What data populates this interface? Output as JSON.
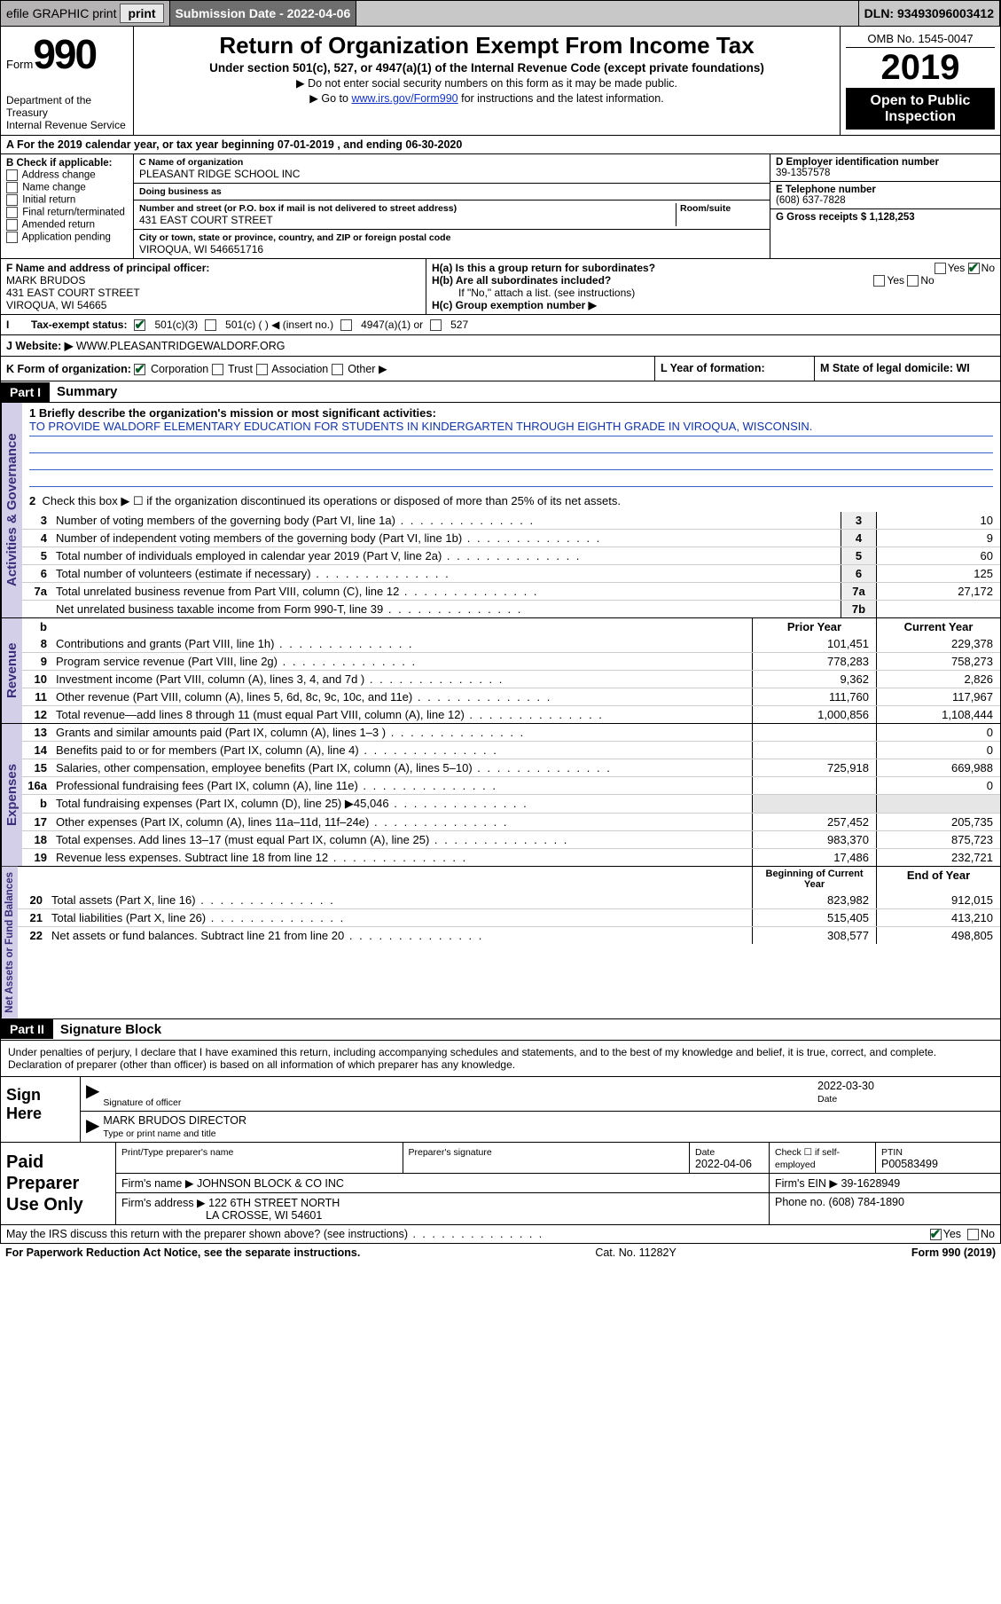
{
  "topbar": {
    "efile": "efile GRAPHIC print",
    "submission_label": "Submission Date - 2022-04-06",
    "dln": "DLN: 93493096003412"
  },
  "header": {
    "form_word": "Form",
    "form_num": "990",
    "title": "Return of Organization Exempt From Income Tax",
    "subtitle": "Under section 501(c), 527, or 4947(a)(1) of the Internal Revenue Code (except private foundations)",
    "note1": "Do not enter social security numbers on this form as it may be made public.",
    "note2_pre": "Go to ",
    "note2_link": "www.irs.gov/Form990",
    "note2_post": " for instructions and the latest information.",
    "omb": "OMB No. 1545-0047",
    "year": "2019",
    "public1": "Open to Public",
    "public2": "Inspection",
    "dept1": "Department of the Treasury",
    "dept2": "Internal Revenue Service"
  },
  "lineA": "A   For the 2019 calendar year, or tax year beginning 07-01-2019   , and ending 06-30-2020",
  "B": {
    "label": "B Check if applicable:",
    "opts": [
      "Address change",
      "Name change",
      "Initial return",
      "Final return/terminated",
      "Amended return",
      "Application pending"
    ]
  },
  "C": {
    "name_hint": "C Name of organization",
    "name": "PLEASANT RIDGE SCHOOL INC",
    "dba_hint": "Doing business as",
    "dba": "",
    "addr_hint": "Number and street (or P.O. box if mail is not delivered to street address)",
    "room_hint": "Room/suite",
    "addr": "431 EAST COURT STREET",
    "city_hint": "City or town, state or province, country, and ZIP or foreign postal code",
    "city": "VIROQUA, WI  546651716"
  },
  "D": {
    "hint": "D Employer identification number",
    "val": "39-1357578"
  },
  "E": {
    "hint": "E Telephone number",
    "val": "(608) 637-7828"
  },
  "G": {
    "label": "G Gross receipts $ 1,128,253"
  },
  "F": {
    "hint": "F  Name and address of principal officer:",
    "name": "MARK BRUDOS",
    "addr": "431 EAST COURT STREET",
    "city": "VIROQUA, WI  54665"
  },
  "H": {
    "a": "H(a)  Is this a group return for subordinates?",
    "b": "H(b)  Are all subordinates included?",
    "b_note": "If \"No,\" attach a list. (see instructions)",
    "c": "H(c)  Group exemption number ▶",
    "yes": "Yes",
    "no": "No"
  },
  "I": {
    "label": "Tax-exempt status:",
    "o1": "501(c)(3)",
    "o2": "501(c) (   ) ◀ (insert no.)",
    "o3": "4947(a)(1) or",
    "o4": "527"
  },
  "J": {
    "label": "J    Website: ▶",
    "val": "WWW.PLEASANTRIDGEWALDORF.ORG"
  },
  "K": {
    "label": "K Form of organization:",
    "opts": [
      "Corporation",
      "Trust",
      "Association",
      "Other ▶"
    ],
    "L": "L Year of formation:",
    "M": "M State of legal domicile: WI"
  },
  "partI": {
    "tag": "Part I",
    "title": "Summary",
    "vtab": "Activities & Governance"
  },
  "summary": {
    "l1_label": "1   Briefly describe the organization's mission or most significant activities:",
    "l1_text": "TO PROVIDE WALDORF ELEMENTARY EDUCATION FOR STUDENTS IN KINDERGARTEN THROUGH EIGHTH GRADE IN VIROQUA, WISCONSIN.",
    "l2": "Check this box ▶ ☐  if the organization discontinued its operations or disposed of more than 25% of its net assets.",
    "rows": [
      {
        "n": "3",
        "t": "Number of voting members of the governing body (Part VI, line 1a)",
        "b": "3",
        "v": "10"
      },
      {
        "n": "4",
        "t": "Number of independent voting members of the governing body (Part VI, line 1b)",
        "b": "4",
        "v": "9"
      },
      {
        "n": "5",
        "t": "Total number of individuals employed in calendar year 2019 (Part V, line 2a)",
        "b": "5",
        "v": "60"
      },
      {
        "n": "6",
        "t": "Total number of volunteers (estimate if necessary)",
        "b": "6",
        "v": "125"
      },
      {
        "n": "7a",
        "t": "Total unrelated business revenue from Part VIII, column (C), line 12",
        "b": "7a",
        "v": "27,172"
      },
      {
        "n": "",
        "t": "Net unrelated business taxable income from Form 990-T, line 39",
        "b": "7b",
        "v": ""
      }
    ]
  },
  "revenue": {
    "vtab": "Revenue",
    "hdr_b": "b",
    "hdr_prior": "Prior Year",
    "hdr_current": "Current Year",
    "rows": [
      {
        "n": "8",
        "t": "Contributions and grants (Part VIII, line 1h)",
        "p": "101,451",
        "c": "229,378"
      },
      {
        "n": "9",
        "t": "Program service revenue (Part VIII, line 2g)",
        "p": "778,283",
        "c": "758,273"
      },
      {
        "n": "10",
        "t": "Investment income (Part VIII, column (A), lines 3, 4, and 7d )",
        "p": "9,362",
        "c": "2,826"
      },
      {
        "n": "11",
        "t": "Other revenue (Part VIII, column (A), lines 5, 6d, 8c, 9c, 10c, and 11e)",
        "p": "111,760",
        "c": "117,967"
      },
      {
        "n": "12",
        "t": "Total revenue—add lines 8 through 11 (must equal Part VIII, column (A), line 12)",
        "p": "1,000,856",
        "c": "1,108,444"
      }
    ]
  },
  "expenses": {
    "vtab": "Expenses",
    "rows": [
      {
        "n": "13",
        "t": "Grants and similar amounts paid (Part IX, column (A), lines 1–3 )",
        "p": "",
        "c": "0"
      },
      {
        "n": "14",
        "t": "Benefits paid to or for members (Part IX, column (A), line 4)",
        "p": "",
        "c": "0"
      },
      {
        "n": "15",
        "t": "Salaries, other compensation, employee benefits (Part IX, column (A), lines 5–10)",
        "p": "725,918",
        "c": "669,988"
      },
      {
        "n": "16a",
        "t": "Professional fundraising fees (Part IX, column (A), line 11e)",
        "p": "",
        "c": "0"
      },
      {
        "n": "b",
        "t": "Total fundraising expenses (Part IX, column (D), line 25) ▶45,046",
        "p": "",
        "c": "",
        "shade": true
      },
      {
        "n": "17",
        "t": "Other expenses (Part IX, column (A), lines 11a–11d, 11f–24e)",
        "p": "257,452",
        "c": "205,735"
      },
      {
        "n": "18",
        "t": "Total expenses. Add lines 13–17 (must equal Part IX, column (A), line 25)",
        "p": "983,370",
        "c": "875,723"
      },
      {
        "n": "19",
        "t": "Revenue less expenses. Subtract line 18 from line 12",
        "p": "17,486",
        "c": "232,721"
      }
    ]
  },
  "netassets": {
    "vtab": "Net Assets or Fund Balances",
    "hdr_b": "Beginning of Current Year",
    "hdr_e": "End of Year",
    "rows": [
      {
        "n": "20",
        "t": "Total assets (Part X, line 16)",
        "p": "823,982",
        "c": "912,015"
      },
      {
        "n": "21",
        "t": "Total liabilities (Part X, line 26)",
        "p": "515,405",
        "c": "413,210"
      },
      {
        "n": "22",
        "t": "Net assets or fund balances. Subtract line 21 from line 20",
        "p": "308,577",
        "c": "498,805"
      }
    ]
  },
  "partII": {
    "tag": "Part II",
    "title": "Signature Block",
    "decl": "Under penalties of perjury, I declare that I have examined this return, including accompanying schedules and statements, and to the best of my knowledge and belief, it is true, correct, and complete. Declaration of preparer (other than officer) is based on all information of which preparer has any knowledge."
  },
  "sign": {
    "label": "Sign Here",
    "sig_hint": "Signature of officer",
    "date": "2022-03-30",
    "date_hint": "Date",
    "name": "MARK BRUDOS DIRECTOR",
    "name_hint": "Type or print name and title"
  },
  "prep": {
    "label": "Paid Preparer Use Only",
    "h1": "Print/Type preparer's name",
    "h2": "Preparer's signature",
    "h3_hint": "Date",
    "h3": "2022-04-06",
    "h4": "Check ☐  if self-employed",
    "h5_hint": "PTIN",
    "h5": "P00583499",
    "firm_label": "Firm's name    ▶",
    "firm": "JOHNSON BLOCK & CO INC",
    "ein_label": "Firm's EIN ▶",
    "ein": "39-1628949",
    "addr_label": "Firm's address ▶",
    "addr1": "122 6TH STREET NORTH",
    "addr2": "LA CROSSE, WI  54601",
    "phone_label": "Phone no.",
    "phone": "(608) 784-1890"
  },
  "discuss": {
    "text": "May the IRS discuss this return with the preparer shown above? (see instructions)",
    "yes": "Yes",
    "no": "No"
  },
  "footer": {
    "left": "For Paperwork Reduction Act Notice, see the separate instructions.",
    "mid": "Cat. No. 11282Y",
    "right": "Form 990 (2019)"
  },
  "colors": {
    "link": "#1133cc",
    "vtab_bg": "#d3cfe8",
    "vtab_fg": "#3a2e7a",
    "check": "#065c27"
  }
}
